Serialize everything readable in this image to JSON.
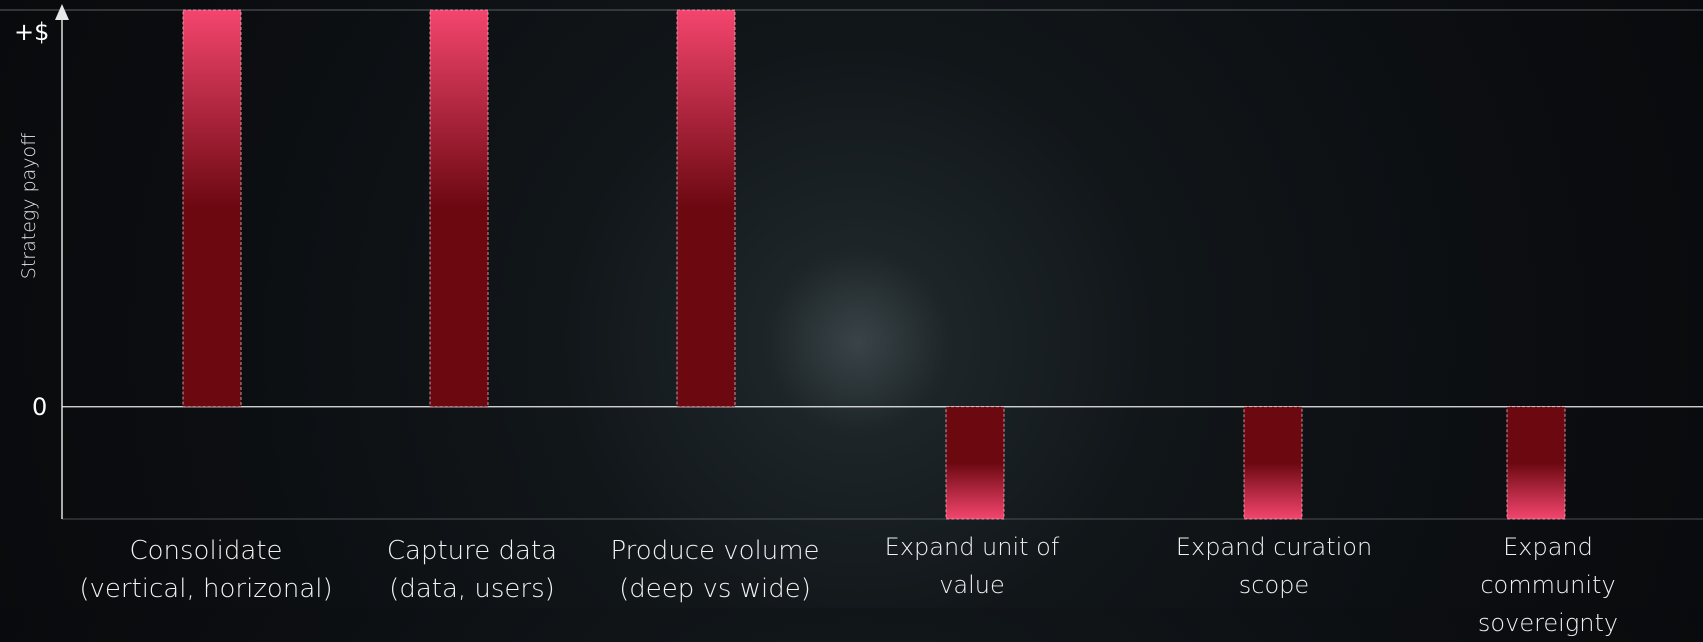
{
  "chart_data": {
    "type": "bar",
    "y_label": "Strategy payoff",
    "categories": [
      "Consolidate\n(vertical, horizonal)",
      "Capture data\n(data, users)",
      "Produce volume\n(deep vs wide)",
      "Expand unit of\nvalue",
      "Expand curation\nscope",
      "Expand community\nsovereignty"
    ],
    "values": [
      1.06,
      1.06,
      1.06,
      -0.3,
      -0.3,
      -0.3
    ],
    "colors": {
      "positive": [
        "#f4456e",
        "#6b0810"
      ],
      "negative": [
        "#6b0810",
        "#f4456e"
      ]
    },
    "ylim": [
      -0.3,
      1.06
    ],
    "yticks": [
      {
        "value": 1,
        "label": "+$"
      },
      0
    ],
    "grid": false
  }
}
